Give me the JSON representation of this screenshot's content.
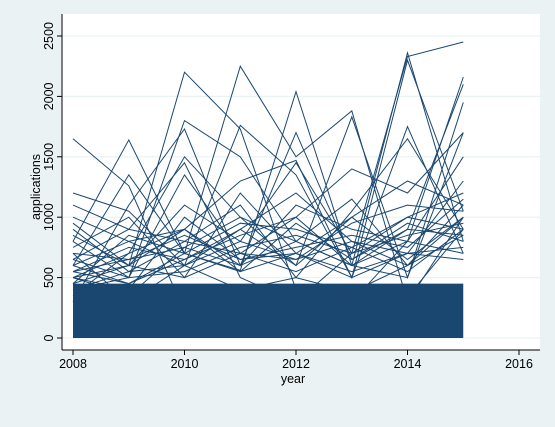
{
  "chart_data": {
    "type": "line",
    "title": "",
    "xlabel": "year",
    "ylabel": "applications",
    "xlim": [
      2008,
      2016
    ],
    "ylim": [
      0,
      2500
    ],
    "x_ticks": [
      "2008",
      "2010",
      "2012",
      "2014",
      "2016"
    ],
    "y_ticks": [
      "0",
      "500",
      "1000",
      "1500",
      "2000",
      "2500"
    ],
    "grid": true,
    "legend": "none",
    "colors": {
      "series": "#1a476f",
      "background": "#eaf2f3",
      "plot": "#ffffff"
    },
    "x": [
      2008,
      2009,
      2010,
      2011,
      2012,
      2013,
      2014,
      2015
    ],
    "dense_band_max": 450,
    "series": [
      {
        "values": [
          1650,
          1260,
          220,
          300,
          180,
          260,
          340,
          900
        ]
      },
      {
        "values": [
          1200,
          1050,
          600,
          400,
          500,
          380,
          600,
          1100
        ]
      },
      {
        "values": [
          1100,
          900,
          1450,
          500,
          300,
          700,
          2330,
          2450
        ]
      },
      {
        "values": [
          800,
          1640,
          700,
          560,
          2040,
          600,
          500,
          1700
        ]
      },
      {
        "values": [
          500,
          600,
          2200,
          1730,
          400,
          300,
          800,
          2160
        ]
      },
      {
        "values": [
          600,
          1350,
          700,
          2250,
          1500,
          1880,
          300,
          1000
        ]
      },
      {
        "values": [
          400,
          500,
          1800,
          1500,
          800,
          600,
          2360,
          800
        ]
      },
      {
        "values": [
          300,
          1100,
          1730,
          600,
          1700,
          650,
          900,
          2100
        ]
      },
      {
        "values": [
          700,
          300,
          600,
          1760,
          1350,
          500,
          2300,
          1050
        ]
      },
      {
        "values": [
          500,
          700,
          1500,
          1000,
          600,
          1830,
          500,
          1950
        ]
      },
      {
        "values": [
          950,
          600,
          900,
          1300,
          1470,
          500,
          1750,
          700
        ]
      },
      {
        "values": [
          800,
          500,
          1350,
          700,
          1000,
          1400,
          1200,
          1700
        ]
      },
      {
        "values": [
          650,
          900,
          800,
          1100,
          500,
          1050,
          1650,
          900
        ]
      },
      {
        "values": [
          1000,
          800,
          600,
          900,
          1200,
          800,
          700,
          1300
        ]
      },
      {
        "values": [
          750,
          1000,
          500,
          1200,
          700,
          1000,
          1300,
          1100
        ]
      },
      {
        "values": [
          850,
          600,
          1100,
          800,
          1450,
          700,
          1000,
          1200
        ]
      },
      {
        "values": [
          600,
          800,
          900,
          600,
          1100,
          900,
          800,
          1500
        ]
      },
      {
        "values": [
          700,
          650,
          750,
          1000,
          800,
          1150,
          600,
          1000
        ]
      },
      {
        "values": [
          550,
          750,
          650,
          850,
          1000,
          600,
          900,
          850
        ]
      },
      {
        "values": [
          900,
          550,
          800,
          700,
          650,
          950,
          1100,
          1050
        ]
      },
      {
        "values": [
          450,
          850,
          700,
          950,
          900,
          750,
          1000,
          900
        ]
      },
      {
        "values": [
          500,
          400,
          1000,
          650,
          750,
          850,
          750,
          1150
        ]
      },
      {
        "values": [
          650,
          500,
          550,
          750,
          850,
          700,
          850,
          950
        ]
      },
      {
        "values": [
          350,
          700,
          900,
          550,
          950,
          650,
          950,
          800
        ]
      },
      {
        "values": [
          600,
          450,
          650,
          900,
          600,
          1000,
          650,
          1000
        ]
      },
      {
        "values": [
          550,
          650,
          850,
          650,
          700,
          550,
          700,
          750
        ]
      },
      {
        "values": [
          400,
          550,
          600,
          800,
          650,
          800,
          600,
          850
        ]
      },
      {
        "values": [
          500,
          350,
          750,
          600,
          800,
          600,
          800,
          700
        ]
      },
      {
        "values": [
          450,
          600,
          500,
          700,
          550,
          750,
          550,
          900
        ]
      },
      {
        "values": [
          550,
          450,
          700,
          550,
          700,
          500,
          700,
          650
        ]
      }
    ]
  }
}
